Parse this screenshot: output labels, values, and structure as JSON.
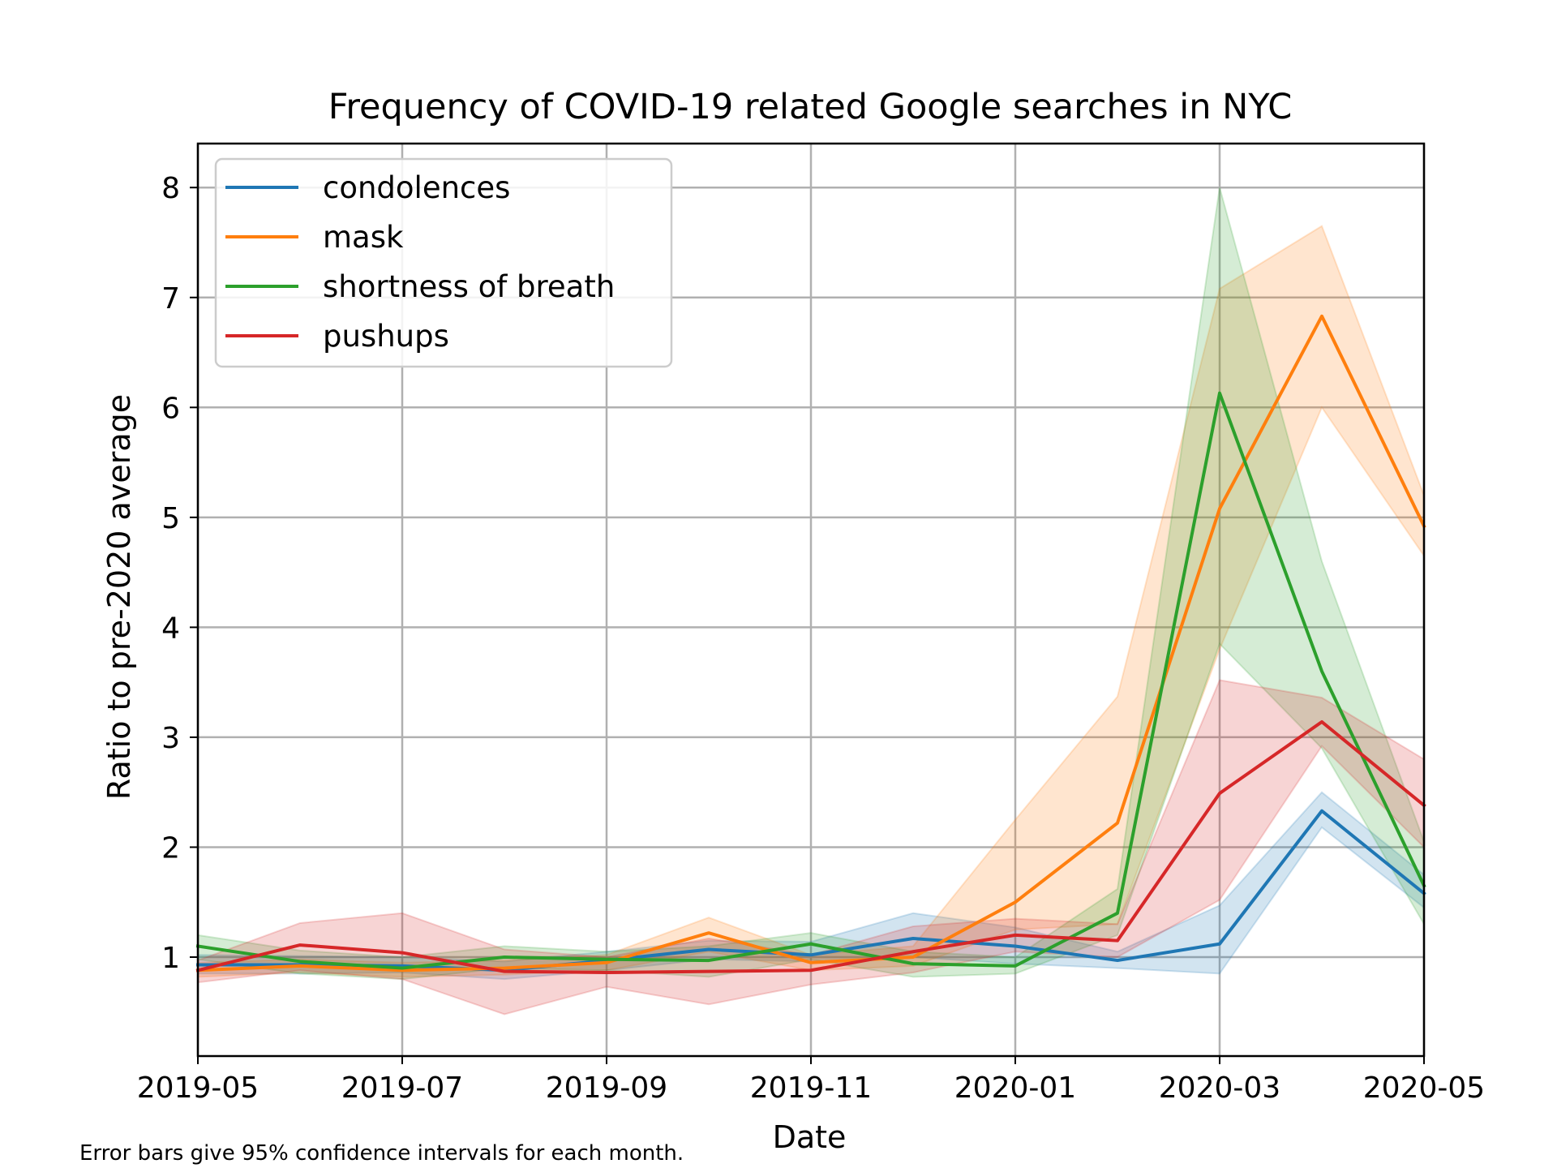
{
  "chart_data": {
    "type": "line",
    "title": "Frequency of COVID-19 related Google searches in NYC",
    "xlabel": "Date",
    "ylabel": "Ratio to pre-2020 average",
    "caption": "Error bars give 95% confidence intervals for each month.",
    "x": [
      "2019-05",
      "2019-06",
      "2019-07",
      "2019-08",
      "2019-09",
      "2019-10",
      "2019-11",
      "2019-12",
      "2020-01",
      "2020-02",
      "2020-03",
      "2020-04",
      "2020-05"
    ],
    "xticks": [
      "2019-05",
      "2019-07",
      "2019-09",
      "2019-11",
      "2020-01",
      "2020-03",
      "2020-05"
    ],
    "yticks": [
      1,
      2,
      3,
      4,
      5,
      6,
      7,
      8
    ],
    "ylim": [
      0.1,
      8.4
    ],
    "grid": true,
    "legend_position": "upper-left",
    "series": [
      {
        "name": "condolences",
        "color": "#1f77b4",
        "values": [
          0.93,
          0.93,
          0.92,
          0.88,
          0.97,
          1.07,
          1.02,
          1.17,
          1.1,
          0.97,
          1.12,
          2.33,
          1.58
        ],
        "lower": [
          0.85,
          0.85,
          0.86,
          0.8,
          0.88,
          0.98,
          0.96,
          1.0,
          0.94,
          0.9,
          0.85,
          2.18,
          1.45
        ],
        "upper": [
          1.02,
          1.01,
          1.0,
          0.96,
          1.05,
          1.15,
          1.14,
          1.4,
          1.27,
          1.05,
          1.47,
          2.5,
          1.75
        ]
      },
      {
        "name": "mask",
        "color": "#ff7f0e",
        "values": [
          0.88,
          0.92,
          0.88,
          0.9,
          0.95,
          1.22,
          0.95,
          1.0,
          1.5,
          2.22,
          5.08,
          6.83,
          4.92
        ],
        "lower": [
          0.82,
          0.86,
          0.82,
          0.84,
          0.88,
          1.05,
          0.88,
          0.92,
          1.25,
          1.3,
          3.8,
          6.0,
          4.65
        ],
        "upper": [
          0.95,
          0.98,
          0.95,
          0.97,
          1.02,
          1.36,
          1.02,
          1.1,
          2.25,
          3.37,
          7.08,
          7.65,
          5.2
        ]
      },
      {
        "name": "shortness of breath",
        "color": "#2ca02c",
        "values": [
          1.1,
          0.96,
          0.9,
          1.0,
          0.98,
          0.97,
          1.12,
          0.94,
          0.92,
          1.4,
          6.13,
          3.6,
          1.65
        ],
        "lower": [
          0.98,
          0.85,
          0.8,
          0.9,
          0.88,
          0.82,
          0.98,
          0.82,
          0.85,
          1.2,
          3.85,
          2.9,
          1.3
        ],
        "upper": [
          1.2,
          1.06,
          1.0,
          1.1,
          1.05,
          1.1,
          1.22,
          1.05,
          1.0,
          1.62,
          8.0,
          4.6,
          2.05
        ]
      },
      {
        "name": "pushups",
        "color": "#d62728",
        "values": [
          0.88,
          1.11,
          1.04,
          0.87,
          0.86,
          0.87,
          0.88,
          1.05,
          1.2,
          1.15,
          2.49,
          3.14,
          2.38
        ],
        "lower": [
          0.77,
          0.88,
          0.8,
          0.48,
          0.73,
          0.57,
          0.75,
          0.86,
          1.05,
          1.0,
          1.52,
          2.92,
          2.0
        ],
        "upper": [
          0.97,
          1.31,
          1.4,
          1.07,
          1.0,
          1.17,
          1.02,
          1.28,
          1.35,
          1.3,
          3.52,
          3.36,
          2.8
        ]
      }
    ]
  }
}
